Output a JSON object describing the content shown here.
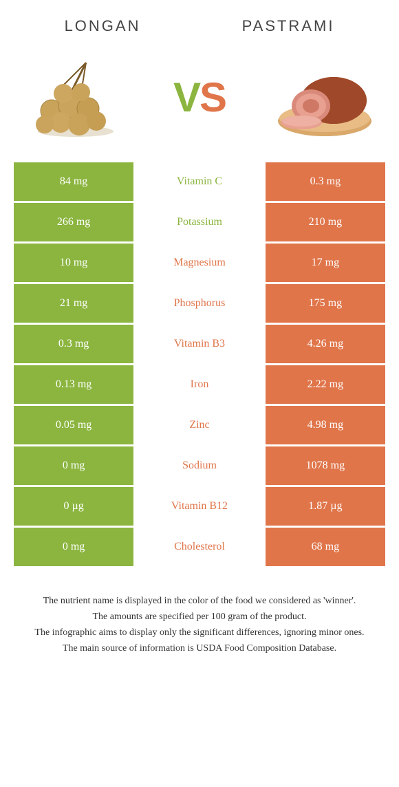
{
  "colors": {
    "left": "#8bb53f",
    "right": "#e0754a",
    "bg": "#ffffff",
    "text": "#333333"
  },
  "header": {
    "left_title": "LONGAN",
    "right_title": "Pastrami",
    "vs_v": "V",
    "vs_s": "S"
  },
  "rows": [
    {
      "left": "84 mg",
      "label": "Vitamin C",
      "right": "0.3 mg",
      "winner": "left"
    },
    {
      "left": "266 mg",
      "label": "Potassium",
      "right": "210 mg",
      "winner": "left"
    },
    {
      "left": "10 mg",
      "label": "Magnesium",
      "right": "17 mg",
      "winner": "right"
    },
    {
      "left": "21 mg",
      "label": "Phosphorus",
      "right": "175 mg",
      "winner": "right"
    },
    {
      "left": "0.3 mg",
      "label": "Vitamin B3",
      "right": "4.26 mg",
      "winner": "right"
    },
    {
      "left": "0.13 mg",
      "label": "Iron",
      "right": "2.22 mg",
      "winner": "right"
    },
    {
      "left": "0.05 mg",
      "label": "Zinc",
      "right": "4.98 mg",
      "winner": "right"
    },
    {
      "left": "0 mg",
      "label": "Sodium",
      "right": "1078 mg",
      "winner": "right"
    },
    {
      "left": "0 µg",
      "label": "Vitamin B12",
      "right": "1.87 µg",
      "winner": "right"
    },
    {
      "left": "0 mg",
      "label": "Cholesterol",
      "right": "68 mg",
      "winner": "right"
    }
  ],
  "footnotes": [
    "The nutrient name is displayed in the color of the food we considered as 'winner'.",
    "The amounts are specified per 100 gram of the product.",
    "The infographic aims to display only the significant differences, ignoring minor ones.",
    "The main source of information is USDA Food Composition Database."
  ]
}
